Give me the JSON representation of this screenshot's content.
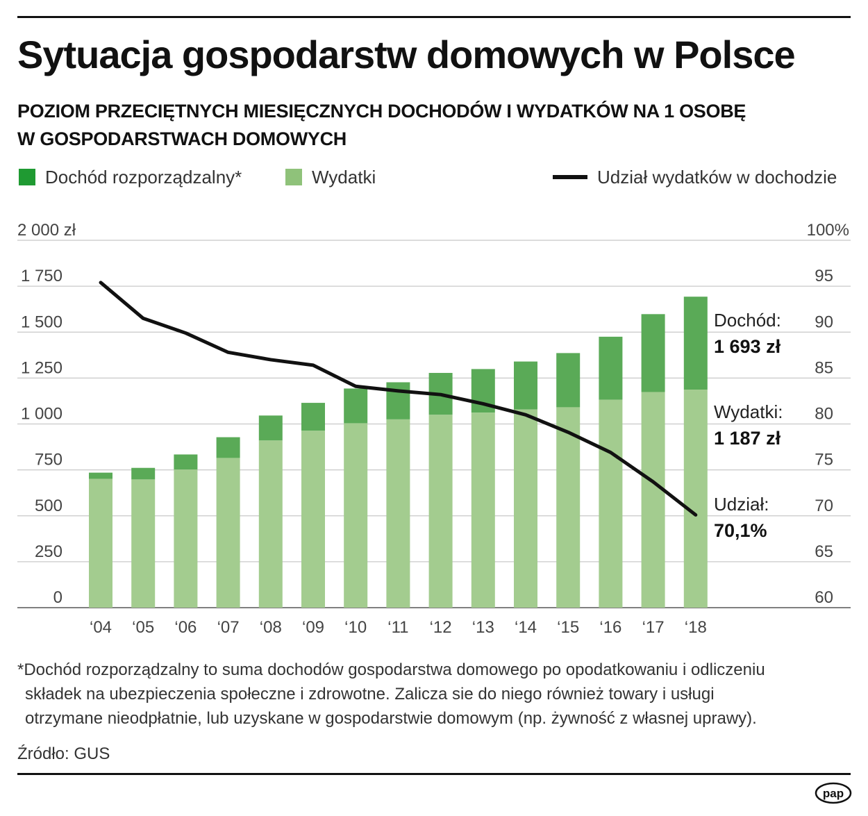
{
  "title": "Sytuacja gospodarstw domowych w Polsce",
  "subtitle_line1": "POZIOM PRZECIĘTNYCH MIESIĘCZNYCH DOCHODÓW I WYDATKÓW NA 1 OSOBĘ",
  "subtitle_line2": "W GOSPODARSTWACH DOMOWYCH",
  "legend": {
    "income": "Dochód rozporządzalny*",
    "expenses": "Wydatki",
    "share": "Udział wydatków w dochodzie"
  },
  "colors": {
    "income": "#5aaa57",
    "expenses": "#a3cc8f",
    "legend_income": "#1f9a32",
    "legend_expenses": "#8fc27a",
    "line": "#111111",
    "grid": "#c8c8c8"
  },
  "annotations": {
    "income_label": "Dochód:",
    "income_value": "1 693 zł",
    "expenses_label": "Wydatki:",
    "expenses_value": "1 187 zł",
    "share_label": "Udział:",
    "share_value": "70,1%"
  },
  "footnote_line1": "*Dochód rozporządzalny to suma dochodów gospodarstwa domowego po opodatkowaniu i odliczeniu",
  "footnote_line2": "składek na ubezpieczenia społeczne i zdrowotne. Zalicza sie do niego również towary i usługi",
  "footnote_line3": "otrzymane nieodpłatnie, lub uzyskane w gospodarstwie domowym (np. żywność z własnej uprawy).",
  "source": "Źródło: GUS",
  "logo_text": "pap",
  "chart_data": {
    "type": "bar",
    "title": "Poziom przeciętnych miesięcznych dochodów i wydatków na 1 osobę w gospodarstwach domowych",
    "categories": [
      "‘04",
      "‘05",
      "‘06",
      "‘07",
      "‘08",
      "‘09",
      "‘10",
      "‘11",
      "‘12",
      "‘13",
      "‘14",
      "‘15",
      "‘16",
      "‘17",
      "‘18"
    ],
    "series": [
      {
        "name": "Dochód rozporządzalny*",
        "values": [
          735,
          761,
          834,
          928,
          1046,
          1115,
          1193,
          1227,
          1278,
          1299,
          1340,
          1386,
          1475,
          1598,
          1693
        ]
      },
      {
        "name": "Wydatki",
        "values": [
          701,
          698,
          752,
          815,
          910,
          963,
          1004,
          1025,
          1050,
          1062,
          1079,
          1091,
          1132,
          1174,
          1187
        ]
      },
      {
        "name": "Udział wydatków w dochodzie",
        "axis": "right",
        "values": [
          95.4,
          91.5,
          89.9,
          87.8,
          87.0,
          86.4,
          84.1,
          83.6,
          83.2,
          82.2,
          81.0,
          79.1,
          76.9,
          73.7,
          70.1
        ]
      }
    ],
    "y_left": {
      "min": 0,
      "max": 2000,
      "ticks": [
        0,
        250,
        500,
        750,
        1000,
        1250,
        1500,
        1750,
        2000
      ],
      "tick_labels": [
        "0",
        "250",
        "500",
        "750",
        "1 000",
        "1 250",
        "1 500",
        "1 750",
        "2 000 zł"
      ]
    },
    "y_right": {
      "min": 60,
      "max": 100,
      "ticks": [
        60,
        65,
        70,
        75,
        80,
        85,
        90,
        95,
        100
      ],
      "tick_labels": [
        "60",
        "65",
        "70",
        "75",
        "80",
        "85",
        "90",
        "95",
        "100%"
      ]
    },
    "xlabel": "",
    "ylabel": "",
    "grid": true
  }
}
